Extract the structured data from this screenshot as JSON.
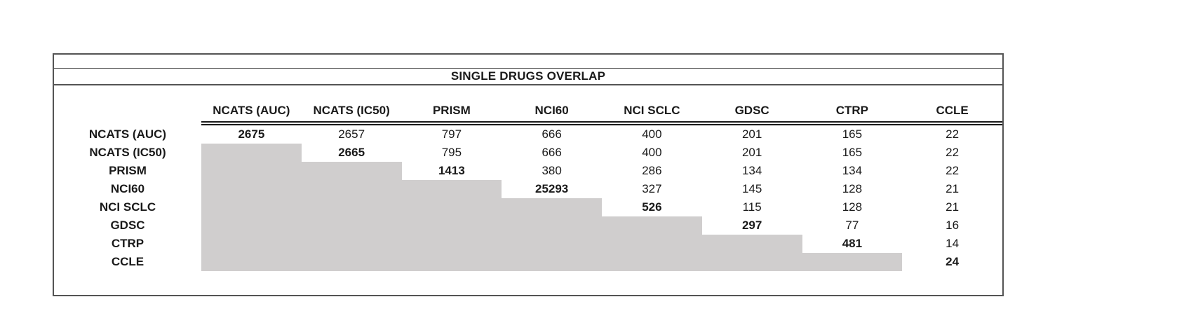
{
  "title": "SINGLE DRUGS OVERLAP",
  "colors": {
    "lower_triangle_fill": "#d0cece",
    "outer_border": "#545454",
    "header_rule": "#1a1a1a",
    "text": "#1a1a1a",
    "background": "#ffffff"
  },
  "chart_data": {
    "type": "table",
    "title": "SINGLE DRUGS OVERLAP",
    "description": "Pairwise overlap matrix of single drugs between screening datasets; diagonal (bold) is the dataset's own drug count; lower triangle is blank and shaded gray.",
    "columns": [
      "NCATS (AUC)",
      "NCATS (IC50)",
      "PRISM",
      "NCI60",
      "NCI SCLC",
      "GDSC",
      "CTRP",
      "CCLE"
    ],
    "row_labels": [
      "NCATS (AUC)",
      "NCATS (IC50)",
      "PRISM",
      "NCI60",
      "NCI SCLC",
      "GDSC",
      "CTRP",
      "CCLE"
    ],
    "rows": [
      [
        2675,
        2657,
        797,
        666,
        400,
        201,
        165,
        22
      ],
      [
        null,
        2665,
        795,
        666,
        400,
        201,
        165,
        22
      ],
      [
        null,
        null,
        1413,
        380,
        286,
        134,
        134,
        22
      ],
      [
        null,
        null,
        null,
        25293,
        327,
        145,
        128,
        21
      ],
      [
        null,
        null,
        null,
        null,
        526,
        115,
        128,
        21
      ],
      [
        null,
        null,
        null,
        null,
        null,
        297,
        77,
        16
      ],
      [
        null,
        null,
        null,
        null,
        null,
        null,
        481,
        14
      ],
      [
        null,
        null,
        null,
        null,
        null,
        null,
        null,
        24
      ]
    ],
    "diagonal_values_bold": [
      2675,
      2665,
      1413,
      25293,
      526,
      297,
      481,
      24
    ],
    "layout": "upper-triangular matrix; blank lower-left triangle filled gray; double rule under column headers; bordered title band above"
  }
}
